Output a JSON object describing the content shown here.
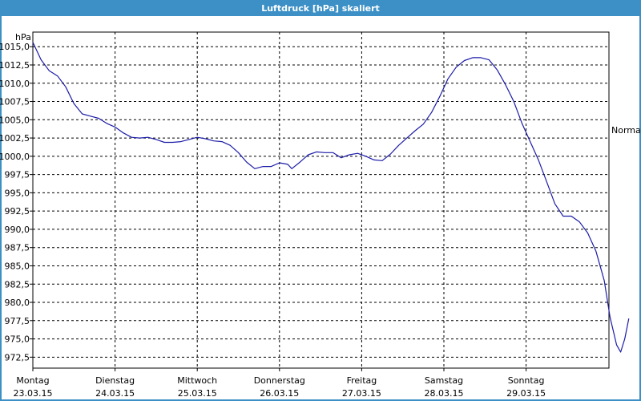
{
  "window": {
    "title": "Luftdruck [hPa] skaliert"
  },
  "chart_data": {
    "type": "line",
    "title": "Luftdruck [hPa] skaliert",
    "unit_label": "hPa",
    "reference_label": "Normal",
    "xlim": [
      0,
      7
    ],
    "ylim": [
      971,
      1017
    ],
    "y_ticks": [
      {
        "value": 1015.0,
        "label": "1015,0"
      },
      {
        "value": 1012.5,
        "label": "1012,5"
      },
      {
        "value": 1010.0,
        "label": "1010,0"
      },
      {
        "value": 1007.5,
        "label": "1007,5"
      },
      {
        "value": 1005.0,
        "label": "1005,0"
      },
      {
        "value": 1002.5,
        "label": "1002,5"
      },
      {
        "value": 1000.0,
        "label": "1000,0"
      },
      {
        "value": 997.5,
        "label": "997,5"
      },
      {
        "value": 995.0,
        "label": "995,0"
      },
      {
        "value": 992.5,
        "label": "992,5"
      },
      {
        "value": 990.0,
        "label": "990,0"
      },
      {
        "value": 987.5,
        "label": "987,5"
      },
      {
        "value": 985.0,
        "label": "985,0"
      },
      {
        "value": 982.5,
        "label": "982,5"
      },
      {
        "value": 980.0,
        "label": "980,0"
      },
      {
        "value": 977.5,
        "label": "977,5"
      },
      {
        "value": 975.0,
        "label": "975,0"
      },
      {
        "value": 972.5,
        "label": "972,5"
      }
    ],
    "x_ticks": [
      {
        "value": 0,
        "day": "Montag",
        "date": "23.03.15"
      },
      {
        "value": 1,
        "day": "Dienstag",
        "date": "24.03.15"
      },
      {
        "value": 2,
        "day": "Mittwoch",
        "date": "25.03.15"
      },
      {
        "value": 3,
        "day": "Donnerstag",
        "date": "26.03.15"
      },
      {
        "value": 4,
        "day": "Freitag",
        "date": "27.03.15"
      },
      {
        "value": 5,
        "day": "Samstag",
        "date": "28.03.15"
      },
      {
        "value": 6,
        "day": "Sonntag",
        "date": "29.03.15"
      }
    ],
    "grid": true,
    "series": [
      {
        "color": "#1c1ca8",
        "points": [
          [
            0.0,
            1015.6
          ],
          [
            0.1,
            1013.2
          ],
          [
            0.2,
            1011.7
          ],
          [
            0.3,
            1011.0
          ],
          [
            0.4,
            1009.5
          ],
          [
            0.5,
            1007.2
          ],
          [
            0.6,
            1005.8
          ],
          [
            0.7,
            1005.5
          ],
          [
            0.8,
            1005.2
          ],
          [
            0.9,
            1004.5
          ],
          [
            1.0,
            1004.0
          ],
          [
            1.1,
            1003.2
          ],
          [
            1.2,
            1002.6
          ],
          [
            1.3,
            1002.5
          ],
          [
            1.4,
            1002.6
          ],
          [
            1.5,
            1002.3
          ],
          [
            1.6,
            1001.9
          ],
          [
            1.7,
            1001.9
          ],
          [
            1.8,
            1002.0
          ],
          [
            1.9,
            1002.3
          ],
          [
            2.0,
            1002.6
          ],
          [
            2.1,
            1002.4
          ],
          [
            2.2,
            1002.1
          ],
          [
            2.3,
            1002.0
          ],
          [
            2.4,
            1001.5
          ],
          [
            2.5,
            1000.5
          ],
          [
            2.6,
            999.2
          ],
          [
            2.7,
            998.3
          ],
          [
            2.8,
            998.6
          ],
          [
            2.9,
            998.6
          ],
          [
            3.0,
            999.1
          ],
          [
            3.1,
            998.9
          ],
          [
            3.15,
            998.3
          ],
          [
            3.25,
            999.2
          ],
          [
            3.35,
            1000.2
          ],
          [
            3.45,
            1000.6
          ],
          [
            3.55,
            1000.5
          ],
          [
            3.65,
            1000.5
          ],
          [
            3.75,
            999.8
          ],
          [
            3.85,
            1000.2
          ],
          [
            3.95,
            1000.4
          ],
          [
            4.05,
            1000.0
          ],
          [
            4.15,
            999.5
          ],
          [
            4.25,
            999.4
          ],
          [
            4.35,
            1000.3
          ],
          [
            4.45,
            1001.5
          ],
          [
            4.55,
            1002.5
          ],
          [
            4.65,
            1003.5
          ],
          [
            4.75,
            1004.4
          ],
          [
            4.85,
            1006.0
          ],
          [
            4.95,
            1008.2
          ],
          [
            5.05,
            1010.6
          ],
          [
            5.15,
            1012.2
          ],
          [
            5.25,
            1013.1
          ],
          [
            5.35,
            1013.5
          ],
          [
            5.45,
            1013.5
          ],
          [
            5.55,
            1013.2
          ],
          [
            5.65,
            1011.8
          ],
          [
            5.75,
            1009.8
          ],
          [
            5.85,
            1007.5
          ],
          [
            5.95,
            1004.5
          ],
          [
            6.05,
            1002.0
          ],
          [
            6.15,
            999.5
          ],
          [
            6.25,
            996.5
          ],
          [
            6.35,
            993.5
          ],
          [
            6.45,
            991.8
          ],
          [
            6.55,
            991.8
          ],
          [
            6.65,
            991.0
          ],
          [
            6.75,
            989.5
          ],
          [
            6.85,
            987.0
          ],
          [
            6.95,
            983.0
          ],
          [
            7.02,
            978.0
          ],
          [
            7.1,
            974.2
          ],
          [
            7.15,
            973.2
          ],
          [
            7.2,
            975.0
          ],
          [
            7.25,
            977.8
          ]
        ]
      }
    ]
  }
}
